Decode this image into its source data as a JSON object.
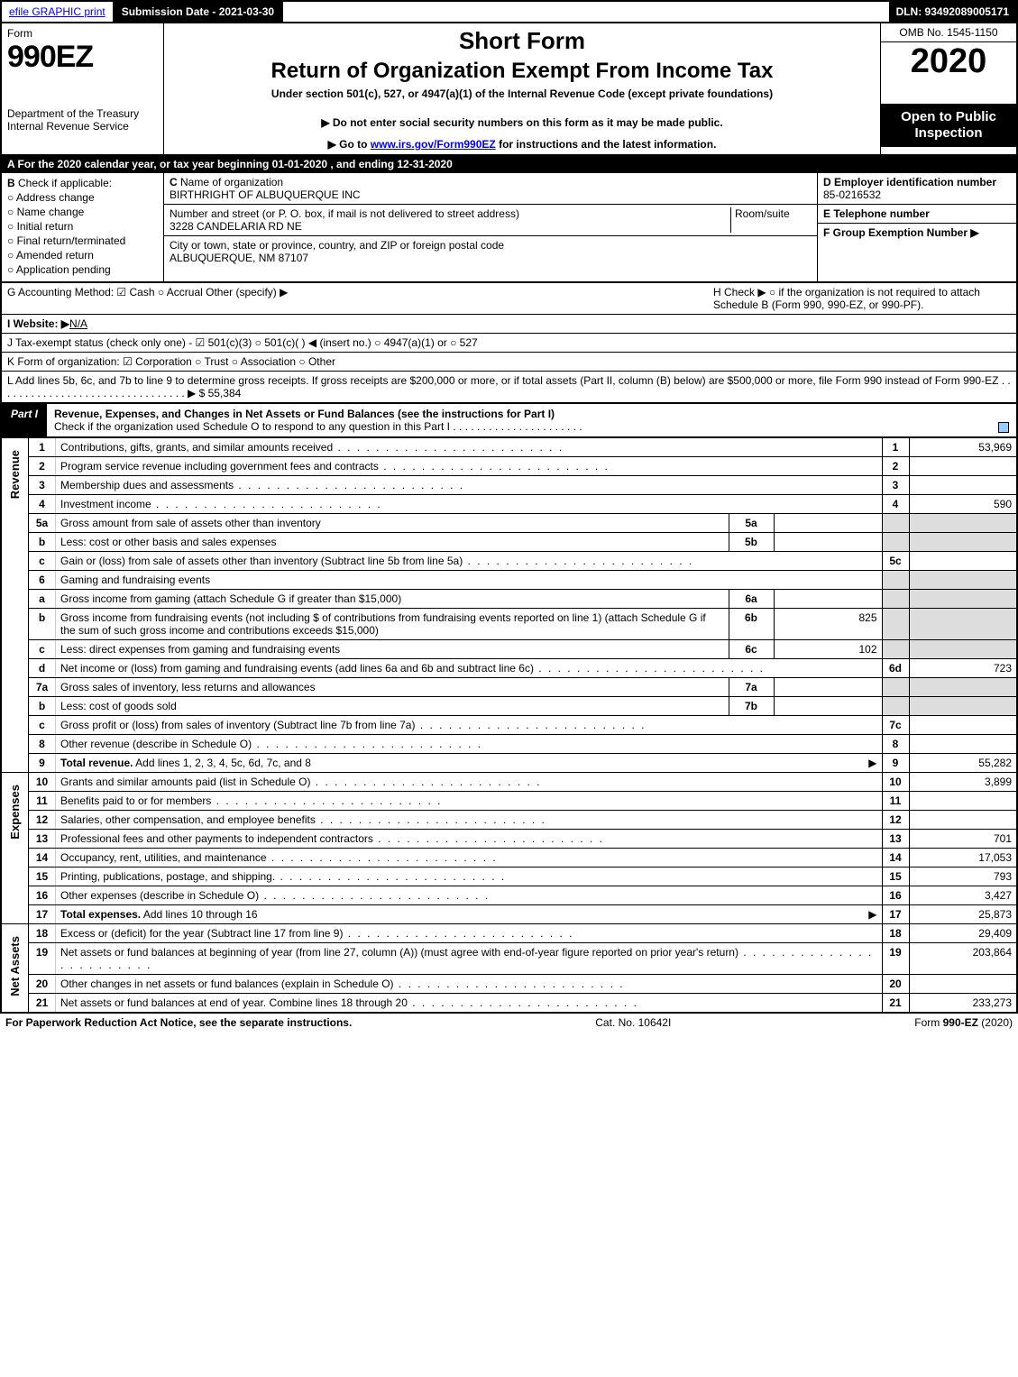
{
  "topbar": {
    "efile": "efile GRAPHIC print",
    "submission": "Submission Date - 2021-03-30",
    "dln": "DLN: 93492089005171"
  },
  "header": {
    "form_label": "Form",
    "form_no": "990EZ",
    "dept1": "Department of the Treasury",
    "dept2": "Internal Revenue Service",
    "short": "Short Form",
    "title": "Return of Organization Exempt From Income Tax",
    "under": "Under section 501(c), 527, or 4947(a)(1) of the Internal Revenue Code (except private foundations)",
    "note1": "▶ Do not enter social security numbers on this form as it may be made public.",
    "note2_pre": "▶ Go to ",
    "note2_link": "www.irs.gov/Form990EZ",
    "note2_post": " for instructions and the latest information.",
    "omb": "OMB No. 1545-1150",
    "year": "2020",
    "open": "Open to Public Inspection"
  },
  "row_a": "A  For the 2020 calendar year, or tax year beginning 01-01-2020 , and ending 12-31-2020",
  "box_b": {
    "b_label": "B",
    "b_check": "Check if applicable:",
    "opts": [
      "Address change",
      "Name change",
      "Initial return",
      "Final return/terminated",
      "Amended return",
      "Application pending"
    ],
    "c_label": "C",
    "c_name_lbl": "Name of organization",
    "c_name": "BIRTHRIGHT OF ALBUQUERQUE INC",
    "c_addr_lbl": "Number and street (or P. O. box, if mail is not delivered to street address)",
    "c_room": "Room/suite",
    "c_addr": "3228 CANDELARIA RD NE",
    "c_city_lbl": "City or town, state or province, country, and ZIP or foreign postal code",
    "c_city": "ALBUQUERQUE, NM  87107",
    "d_label": "D Employer identification number",
    "d_ein": "85-0216532",
    "e_label": "E Telephone number",
    "f_label": "F Group Exemption Number  ▶"
  },
  "mid": {
    "g": "G Accounting Method:  ☑ Cash  ○ Accrual   Other (specify) ▶",
    "h": "H   Check ▶  ○  if the organization is not required to attach Schedule B (Form 990, 990-EZ, or 990-PF).",
    "i_lbl": "I Website: ▶",
    "i_val": "N/A",
    "j": "J Tax-exempt status (check only one) -  ☑ 501(c)(3)  ○  501(c)(  )  ◀ (insert no.)  ○  4947(a)(1) or  ○  527",
    "k": "K Form of organization:   ☑ Corporation   ○ Trust   ○ Association   ○ Other",
    "l": "L Add lines 5b, 6c, and 7b to line 9 to determine gross receipts. If gross receipts are $200,000 or more, or if total assets (Part II, column (B) below) are $500,000 or more, file Form 990 instead of Form 990-EZ  . . . . . . . . . . . . . . . . . . . . . . . . . . . . . . . .  ▶ $ 55,384"
  },
  "part1": {
    "lbl": "Part I",
    "title": "Revenue, Expenses, and Changes in Net Assets or Fund Balances (see the instructions for Part I)",
    "sub": "Check if the organization used Schedule O to respond to any question in this Part I . . . . . . . . . . . . . . . . . . . . . ."
  },
  "vlabels": {
    "rev": "Revenue",
    "exp": "Expenses",
    "na": "Net Assets"
  },
  "rows": [
    {
      "sec": "rev",
      "n": "1",
      "d": "Contributions, gifts, grants, and similar amounts received",
      "ln": "1",
      "amt": "53,969"
    },
    {
      "sec": "rev",
      "n": "2",
      "d": "Program service revenue including government fees and contracts",
      "ln": "2",
      "amt": ""
    },
    {
      "sec": "rev",
      "n": "3",
      "d": "Membership dues and assessments",
      "ln": "3",
      "amt": ""
    },
    {
      "sec": "rev",
      "n": "4",
      "d": "Investment income",
      "ln": "4",
      "amt": "590"
    },
    {
      "sec": "rev",
      "n": "5a",
      "d": "Gross amount from sale of assets other than inventory",
      "sub": "5a",
      "sv": "",
      "grey": true
    },
    {
      "sec": "rev",
      "n": "b",
      "d": "Less: cost or other basis and sales expenses",
      "sub": "5b",
      "sv": "",
      "grey": true
    },
    {
      "sec": "rev",
      "n": "c",
      "d": "Gain or (loss) from sale of assets other than inventory (Subtract line 5b from line 5a)",
      "ln": "5c",
      "amt": ""
    },
    {
      "sec": "rev",
      "n": "6",
      "d": "Gaming and fundraising events",
      "grey": true
    },
    {
      "sec": "rev",
      "n": "a",
      "d": "Gross income from gaming (attach Schedule G if greater than $15,000)",
      "sub": "6a",
      "sv": "",
      "grey": true
    },
    {
      "sec": "rev",
      "n": "b",
      "d": "Gross income from fundraising events (not including $                  of contributions from fundraising events reported on line 1) (attach Schedule G if the sum of such gross income and contributions exceeds $15,000)",
      "sub": "6b",
      "sv": "825",
      "grey": true
    },
    {
      "sec": "rev",
      "n": "c",
      "d": "Less: direct expenses from gaming and fundraising events",
      "sub": "6c",
      "sv": "102",
      "grey": true
    },
    {
      "sec": "rev",
      "n": "d",
      "d": "Net income or (loss) from gaming and fundraising events (add lines 6a and 6b and subtract line 6c)",
      "ln": "6d",
      "amt": "723"
    },
    {
      "sec": "rev",
      "n": "7a",
      "d": "Gross sales of inventory, less returns and allowances",
      "sub": "7a",
      "sv": "",
      "grey": true
    },
    {
      "sec": "rev",
      "n": "b",
      "d": "Less: cost of goods sold",
      "sub": "7b",
      "sv": "",
      "grey": true
    },
    {
      "sec": "rev",
      "n": "c",
      "d": "Gross profit or (loss) from sales of inventory (Subtract line 7b from line 7a)",
      "ln": "7c",
      "amt": ""
    },
    {
      "sec": "rev",
      "n": "8",
      "d": "Other revenue (describe in Schedule O)",
      "ln": "8",
      "amt": ""
    },
    {
      "sec": "rev",
      "n": "9",
      "d": "Total revenue. Add lines 1, 2, 3, 4, 5c, 6d, 7c, and 8",
      "ln": "9",
      "amt": "55,282",
      "bold": true,
      "arrow": true
    },
    {
      "sec": "exp",
      "n": "10",
      "d": "Grants and similar amounts paid (list in Schedule O)",
      "ln": "10",
      "amt": "3,899"
    },
    {
      "sec": "exp",
      "n": "11",
      "d": "Benefits paid to or for members",
      "ln": "11",
      "amt": ""
    },
    {
      "sec": "exp",
      "n": "12",
      "d": "Salaries, other compensation, and employee benefits",
      "ln": "12",
      "amt": ""
    },
    {
      "sec": "exp",
      "n": "13",
      "d": "Professional fees and other payments to independent contractors",
      "ln": "13",
      "amt": "701"
    },
    {
      "sec": "exp",
      "n": "14",
      "d": "Occupancy, rent, utilities, and maintenance",
      "ln": "14",
      "amt": "17,053"
    },
    {
      "sec": "exp",
      "n": "15",
      "d": "Printing, publications, postage, and shipping.",
      "ln": "15",
      "amt": "793"
    },
    {
      "sec": "exp",
      "n": "16",
      "d": "Other expenses (describe in Schedule O)",
      "ln": "16",
      "amt": "3,427"
    },
    {
      "sec": "exp",
      "n": "17",
      "d": "Total expenses. Add lines 10 through 16",
      "ln": "17",
      "amt": "25,873",
      "bold": true,
      "arrow": true
    },
    {
      "sec": "na",
      "n": "18",
      "d": "Excess or (deficit) for the year (Subtract line 17 from line 9)",
      "ln": "18",
      "amt": "29,409"
    },
    {
      "sec": "na",
      "n": "19",
      "d": "Net assets or fund balances at beginning of year (from line 27, column (A)) (must agree with end-of-year figure reported on prior year's return)",
      "ln": "19",
      "amt": "203,864"
    },
    {
      "sec": "na",
      "n": "20",
      "d": "Other changes in net assets or fund balances (explain in Schedule O)",
      "ln": "20",
      "amt": ""
    },
    {
      "sec": "na",
      "n": "21",
      "d": "Net assets or fund balances at end of year. Combine lines 18 through 20",
      "ln": "21",
      "amt": "233,273"
    }
  ],
  "foot": {
    "l": "For Paperwork Reduction Act Notice, see the separate instructions.",
    "c": "Cat. No. 10642I",
    "r": "Form 990-EZ (2020)"
  }
}
